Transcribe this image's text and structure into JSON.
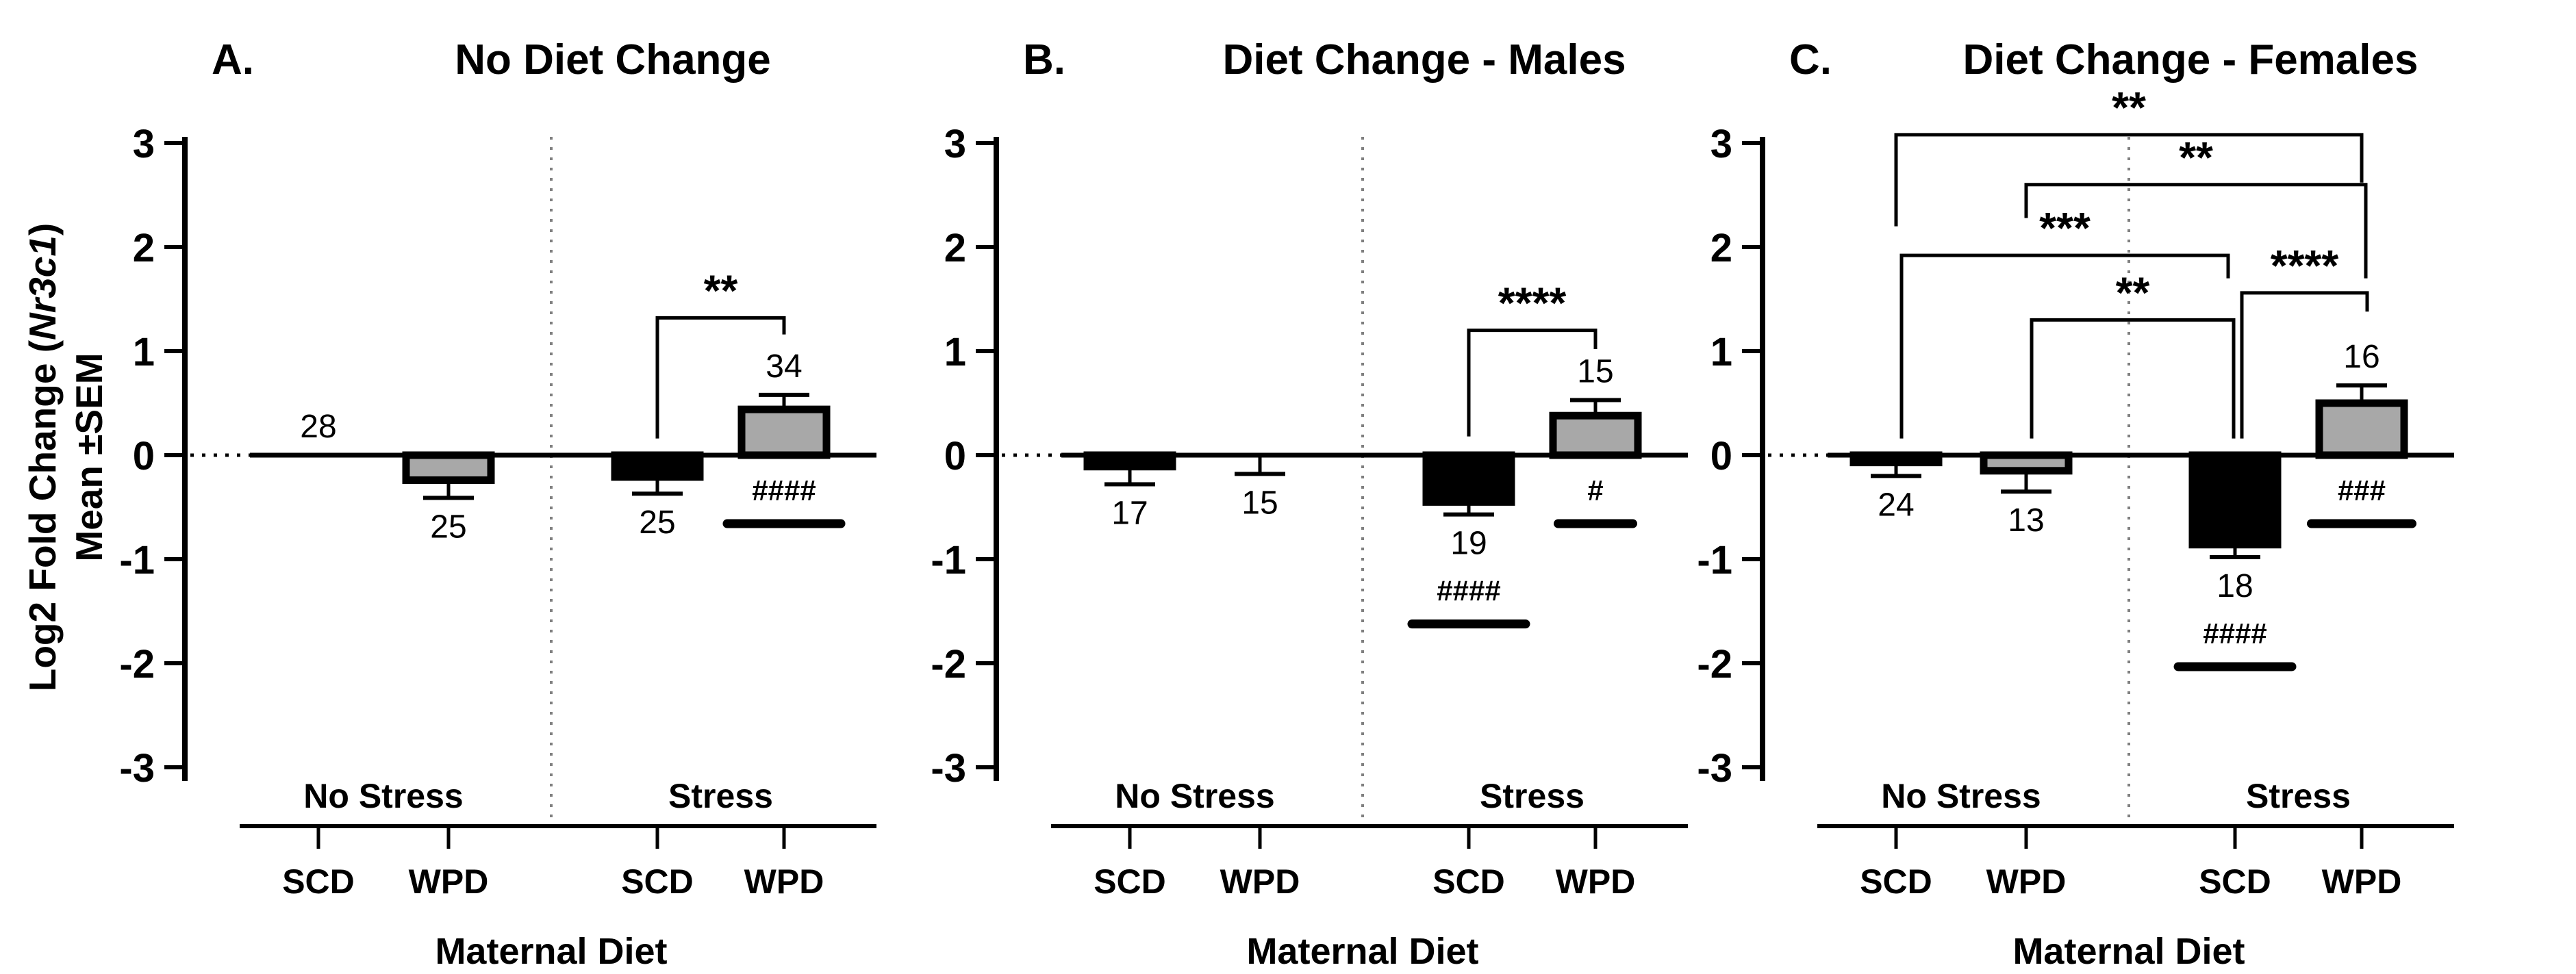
{
  "figure": {
    "background": "#ffffff",
    "y_axis_label": {
      "prefix": "Log2 Fold Change (",
      "gene": "Nr3c1",
      "suffix": ")",
      "line2": "Mean ±SEM"
    },
    "colors": {
      "scd_bar_fill": "#000000",
      "wpd_bar_fill": "#a8a8a8",
      "bar_outline": "#000000",
      "divider": "#808080",
      "text": "#000000"
    }
  },
  "chart_data": {
    "type": "bar",
    "shared": {
      "ylim": [
        -3,
        3
      ],
      "yticks": [
        3,
        2,
        1,
        0,
        -1,
        -2,
        -3
      ],
      "group_labels": [
        "No Stress",
        "Stress"
      ],
      "categories": [
        "SCD",
        "WPD",
        "SCD",
        "WPD"
      ],
      "xlabel": "Maternal Diet",
      "ylabel": "Log2 Fold Change (Nr3c1) Mean ±SEM",
      "grid": false,
      "legend": false
    },
    "panels": [
      {
        "panel_label": "A.",
        "title": "No Diet Change",
        "bars": [
          {
            "group": "No Stress",
            "category": "SCD",
            "n": 28,
            "mean": 0.02,
            "sem": 0,
            "fill": "scd",
            "n_label_pos": "above",
            "hash": null
          },
          {
            "group": "No Stress",
            "category": "WPD",
            "n": 25,
            "mean": -0.24,
            "sem": 0.17,
            "fill": "wpd",
            "n_label_pos": "below",
            "hash": null
          },
          {
            "group": "Stress",
            "category": "SCD",
            "n": 25,
            "mean": -0.21,
            "sem": 0.16,
            "fill": "scd",
            "n_label_pos": "below",
            "hash": null
          },
          {
            "group": "Stress",
            "category": "WPD",
            "n": 34,
            "mean": 0.44,
            "sem": 0.14,
            "fill": "wpd",
            "n_label_pos": "above",
            "hash": "####"
          }
        ],
        "brackets": [
          {
            "from": 2,
            "to": 3,
            "level": 1.32,
            "label": "**",
            "leg_from": 0.16,
            "leg_to": 1.16,
            "dx_from": 0,
            "dx_to": 0
          }
        ]
      },
      {
        "panel_label": "B.",
        "title": "Diet Change - Males",
        "bars": [
          {
            "group": "No Stress",
            "category": "SCD",
            "n": 17,
            "mean": -0.11,
            "sem": 0.17,
            "fill": "scd",
            "n_label_pos": "below",
            "hash": null
          },
          {
            "group": "No Stress",
            "category": "WPD",
            "n": 15,
            "mean": -0.02,
            "sem": 0.16,
            "fill": "wpd",
            "n_label_pos": "below",
            "hash": null
          },
          {
            "group": "Stress",
            "category": "SCD",
            "n": 19,
            "mean": -0.45,
            "sem": 0.12,
            "fill": "scd",
            "n_label_pos": "below",
            "hash": "####"
          },
          {
            "group": "Stress",
            "category": "WPD",
            "n": 15,
            "mean": 0.38,
            "sem": 0.15,
            "fill": "wpd",
            "n_label_pos": "above",
            "hash": "#"
          }
        ],
        "brackets": [
          {
            "from": 2,
            "to": 3,
            "level": 1.2,
            "label": "****",
            "leg_from": 0.18,
            "leg_to": 1.02,
            "dx_from": 0,
            "dx_to": 0
          }
        ]
      },
      {
        "panel_label": "C.",
        "title": "Diet Change - Females",
        "bars": [
          {
            "group": "No Stress",
            "category": "SCD",
            "n": 24,
            "mean": -0.07,
            "sem": 0.13,
            "fill": "scd",
            "n_label_pos": "below",
            "hash": null
          },
          {
            "group": "No Stress",
            "category": "WPD",
            "n": 13,
            "mean": -0.15,
            "sem": 0.2,
            "fill": "wpd",
            "n_label_pos": "below",
            "hash": null
          },
          {
            "group": "Stress",
            "category": "SCD",
            "n": 18,
            "mean": -0.86,
            "sem": 0.12,
            "fill": "scd",
            "n_label_pos": "below",
            "hash": "####"
          },
          {
            "group": "Stress",
            "category": "WPD",
            "n": 16,
            "mean": 0.5,
            "sem": 0.17,
            "fill": "wpd",
            "n_label_pos": "above",
            "hash": "###"
          }
        ],
        "brackets": [
          {
            "from": 0,
            "to": 3,
            "level": 3.08,
            "label": "**",
            "leg_from": 2.2,
            "leg_to": 2.62,
            "dx_from": 0,
            "dx_to": 0
          },
          {
            "from": 1,
            "to": 3,
            "level": 2.6,
            "label": "**",
            "leg_from": 2.28,
            "leg_to": 1.7,
            "dx_from": 0,
            "dx_to": 6
          },
          {
            "from": 0,
            "to": 2,
            "level": 1.92,
            "label": "***",
            "leg_from": 0.16,
            "leg_to": 1.7,
            "dx_from": 8,
            "dx_to": -10
          },
          {
            "from": 1,
            "to": 2,
            "level": 1.3,
            "label": "**",
            "leg_from": 0.16,
            "leg_to": 0.16,
            "dx_from": 8,
            "dx_to": -2
          },
          {
            "from": 2,
            "to": 3,
            "level": 1.56,
            "label": "****",
            "leg_from": 0.16,
            "leg_to": 1.38,
            "dx_from": 10,
            "dx_to": 8
          }
        ]
      }
    ]
  }
}
